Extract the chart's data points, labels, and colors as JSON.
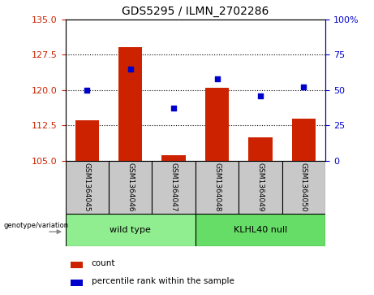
{
  "title": "GDS5295 / ILMN_2702286",
  "samples": [
    "GSM1364045",
    "GSM1364046",
    "GSM1364047",
    "GSM1364048",
    "GSM1364049",
    "GSM1364050"
  ],
  "counts": [
    113.5,
    129.0,
    106.2,
    120.5,
    110.0,
    114.0
  ],
  "percentiles": [
    50,
    65,
    37,
    58,
    46,
    52
  ],
  "ylim_left": [
    105,
    135
  ],
  "ylim_right": [
    0,
    100
  ],
  "yticks_left": [
    105,
    112.5,
    120,
    127.5,
    135
  ],
  "yticks_right": [
    0,
    25,
    50,
    75,
    100
  ],
  "bar_color": "#CC2200",
  "dot_color": "#0000CC",
  "bg_color": "#FFFFFF",
  "bar_bottom": 105,
  "bar_width": 0.55,
  "left_axis_color": "#CC2200",
  "right_axis_color": "#0000CC",
  "sample_box_color": "#C8C8C8",
  "wt_color": "#90EE90",
  "kn_color": "#66DD66"
}
